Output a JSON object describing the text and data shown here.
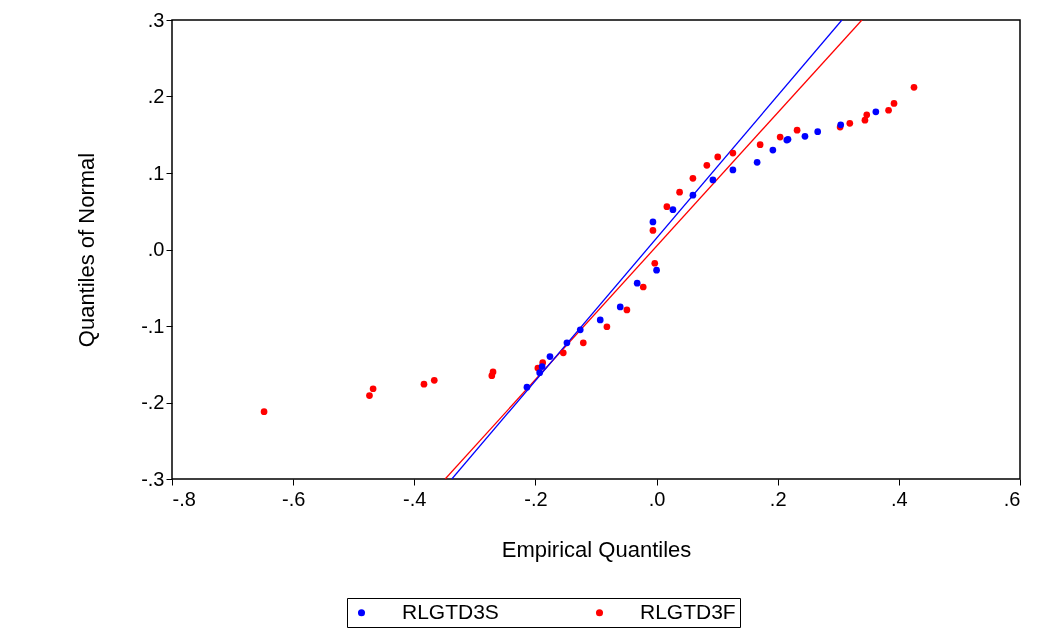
{
  "chart_data": {
    "type": "scatter",
    "xlabel": "Empirical Quantiles",
    "ylabel": "Quantiles of Normal",
    "xlim": [
      -0.8,
      0.6
    ],
    "ylim": [
      -0.3,
      0.3
    ],
    "xticks": [
      {
        "value": -0.8,
        "label": "-.8"
      },
      {
        "value": -0.6,
        "label": "-.6"
      },
      {
        "value": -0.4,
        "label": "-.4"
      },
      {
        "value": -0.2,
        "label": "-.2"
      },
      {
        "value": 0,
        "label": ".0"
      },
      {
        "value": 0.2,
        "label": ".2"
      },
      {
        "value": 0.4,
        "label": ".4"
      },
      {
        "value": 0.6,
        "label": ".6"
      }
    ],
    "yticks": [
      {
        "value": -0.3,
        "label": "-.3"
      },
      {
        "value": -0.2,
        "label": "-.2"
      },
      {
        "value": -0.1,
        "label": "-.1"
      },
      {
        "value": 0,
        "label": ".0"
      },
      {
        "value": 0.1,
        "label": ".1"
      },
      {
        "value": 0.2,
        "label": ".2"
      },
      {
        "value": 0.3,
        "label": ".3"
      }
    ],
    "grid": false,
    "legend": "bottom",
    "series": [
      {
        "name": "RLGTD3S",
        "color": "#0000ff",
        "marker": "circle",
        "x": [
          -0.214,
          -0.193,
          -0.189,
          -0.176,
          -0.148,
          -0.126,
          -0.093,
          -0.06,
          -0.032,
          0.0,
          -0.006,
          0.027,
          0.06,
          0.093,
          0.126,
          0.166,
          0.192,
          0.215,
          0.217,
          0.245,
          0.266,
          0.304,
          0.362
        ],
        "values": [
          -0.18,
          -0.161,
          -0.153,
          -0.14,
          -0.122,
          -0.105,
          -0.092,
          -0.075,
          -0.044,
          -0.027,
          0.036,
          0.052,
          0.071,
          0.091,
          0.104,
          0.114,
          0.13,
          0.143,
          0.144,
          0.148,
          0.154,
          0.163,
          0.18
        ]
      },
      {
        "name": "RLGTD3F",
        "color": "#ff0000",
        "marker": "circle",
        "x": [
          -0.648,
          -0.474,
          -0.468,
          -0.384,
          -0.367,
          -0.272,
          -0.27,
          -0.196,
          -0.188,
          -0.154,
          -0.121,
          -0.082,
          -0.049,
          -0.022,
          -0.003,
          -0.006,
          0.017,
          0.038,
          0.06,
          0.083,
          0.101,
          0.126,
          0.171,
          0.204,
          0.232,
          0.303,
          0.319,
          0.344,
          0.347,
          0.383,
          0.392,
          0.425
        ],
        "values": [
          -0.212,
          -0.191,
          -0.182,
          -0.176,
          -0.171,
          -0.165,
          -0.16,
          -0.155,
          -0.148,
          -0.135,
          -0.122,
          -0.101,
          -0.079,
          -0.049,
          -0.018,
          0.025,
          0.056,
          0.075,
          0.093,
          0.11,
          0.121,
          0.126,
          0.137,
          0.147,
          0.156,
          0.16,
          0.165,
          0.169,
          0.176,
          0.182,
          0.191,
          0.212
        ]
      },
      {
        "type": "line",
        "color": "#0000ff",
        "marker": "none",
        "x": [
          -0.338,
          0.306
        ],
        "values": [
          -0.3,
          0.3
        ]
      },
      {
        "type": "line",
        "color": "#ff0000",
        "marker": "none",
        "x": [
          -0.349,
          0.339
        ],
        "values": [
          -0.3,
          0.3
        ]
      }
    ]
  }
}
